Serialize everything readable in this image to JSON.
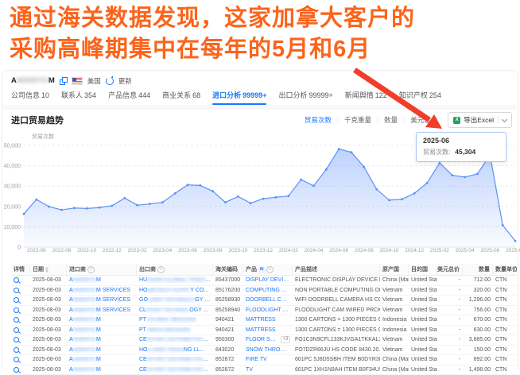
{
  "headline": {
    "line1": "通过海关数据发现，这家加拿大客户的",
    "line2": "采购高峰期集中在每年的5月和6月"
  },
  "colors": {
    "headline": "#fb641b",
    "arrow": "#f23d2a",
    "accent_blue": "#1677ff",
    "chart_line": "#5b8ff9",
    "chart_area": "#d6e4fb",
    "excel_green": "#1ea35a"
  },
  "company_bar": {
    "name_start": "A",
    "name_mask": "NDERTO",
    "name_end": "M",
    "country": "美国",
    "refresh_label": "更新"
  },
  "tabs": [
    {
      "label": "公司信息",
      "count": "10",
      "active": false
    },
    {
      "label": "联系人",
      "count": "354",
      "active": false
    },
    {
      "label": "产品信息",
      "count": "444",
      "active": false
    },
    {
      "label": "商业关系",
      "count": "68",
      "active": false
    },
    {
      "label": "进口分析",
      "count": "99999+",
      "active": true
    },
    {
      "label": "出口分析",
      "count": "99999+",
      "active": false
    },
    {
      "label": "新闻舆情",
      "count": "122",
      "active": false
    },
    {
      "label": "知识产权",
      "count": "254",
      "active": false
    }
  ],
  "chart_section": {
    "title": "进口贸易趋势",
    "metrics": [
      {
        "label": "贸易次数",
        "active": true
      },
      {
        "label": "千克重量",
        "active": false
      },
      {
        "label": "数量",
        "active": false
      },
      {
        "label": "美元总价",
        "active": false
      }
    ],
    "export_label": "导出Excel"
  },
  "tooltip": {
    "date": "2025-06",
    "metric_label": "贸易次数:",
    "value": "45,304"
  },
  "chart_data": {
    "type": "area",
    "title": "进口贸易趋势",
    "ylabel": "贸易次数",
    "ylim": [
      0,
      50000
    ],
    "yticks": [
      0,
      10000,
      20000,
      30000,
      40000,
      50000
    ],
    "ytick_labels": [
      "0",
      "10,000",
      "20,000",
      "30,000",
      "40,000",
      "50,000"
    ],
    "grid": "horizontal-dashed",
    "legend": "none",
    "x": [
      "2022-05",
      "2022-06",
      "2022-07",
      "2022-08",
      "2022-09",
      "2022-10",
      "2022-11",
      "2022-12",
      "2023-01",
      "2023-02",
      "2023-03",
      "2023-04",
      "2023-05",
      "2023-06",
      "2023-07",
      "2023-08",
      "2023-09",
      "2023-10",
      "2023-11",
      "2023-12",
      "2024-01",
      "2024-02",
      "2024-03",
      "2024-04",
      "2024-05",
      "2024-06",
      "2024-07",
      "2024-08",
      "2024-09",
      "2024-10",
      "2024-11",
      "2024-12",
      "2025-01",
      "2025-02",
      "2025-03",
      "2025-04",
      "2025-05",
      "2025-06",
      "2025-07",
      "2025-08"
    ],
    "values": [
      16300,
      23400,
      19900,
      18300,
      19200,
      19000,
      19400,
      20300,
      24100,
      20600,
      21200,
      22000,
      26400,
      30600,
      30300,
      27450,
      22000,
      24900,
      21600,
      23800,
      24500,
      25100,
      33200,
      30100,
      38200,
      48200,
      46600,
      39400,
      28400,
      23100,
      23500,
      26400,
      31500,
      41400,
      35300,
      34400,
      36000,
      45304,
      10800,
      3000
    ],
    "xticks": [
      "2022-06",
      "2022-08",
      "2022-10",
      "2022-12",
      "2023-02",
      "2023-04",
      "2023-06",
      "2023-08",
      "2023-10",
      "2023-12",
      "2024-02",
      "2024-04",
      "2024-06",
      "2024-08",
      "2024-10",
      "2024-12",
      "2025-02",
      "2025-04",
      "2025-06",
      "2025-08"
    ],
    "highlight": {
      "x": "2025-06",
      "value": 45304
    }
  },
  "table": {
    "headers": [
      {
        "label": "详情",
        "icon": ""
      },
      {
        "label": "日期",
        "icon": "sort"
      },
      {
        "label": "进口商",
        "icon": "info"
      },
      {
        "label": "出口商",
        "icon": "info"
      },
      {
        "label": "海关编码",
        "icon": ""
      },
      {
        "label": "产品",
        "icon": "ai-info"
      },
      {
        "label": "产品描述",
        "icon": ""
      },
      {
        "label": "原产国",
        "icon": ""
      },
      {
        "label": "目的国",
        "icon": ""
      },
      {
        "label": "美元总价",
        "icon": ""
      },
      {
        "label": "数量",
        "icon": ""
      },
      {
        "label": "数量单位",
        "icon": ""
      }
    ],
    "rows": [
      {
        "date": "2025-08-03",
        "importer": {
          "start": "A",
          "mask": "NDERTO",
          "end": "M"
        },
        "exporter": {
          "start": "HU",
          "mask": "DSON GLOBAL TRADI",
          "end": "NG LI..."
        },
        "hs": "85437000",
        "product": "DISPLAY DEVICE",
        "badge": "",
        "desc": "ELECTRONIC DISPLAY DEVICE HTS CODE 85",
        "origin": "China (Mainland)",
        "dest": "United States",
        "usd": "-",
        "qty": "712.00",
        "unit": "CTN"
      },
      {
        "date": "2025-08-03",
        "importer": {
          "start": "A",
          "mask": "NDERTO",
          "end": "M SERVICES"
        },
        "exporter": {
          "start": "HO",
          "mask": "METECH SUPPL",
          "end": "Y CO..."
        },
        "hs": "85176200",
        "product": "COMPUTING DEVICE",
        "badge": "",
        "desc": "NON PORTABLE COMPUTING DEVICE HS CO",
        "origin": "Vietnam",
        "dest": "United States",
        "usd": "-",
        "qty": "320.00",
        "unit": "CTN"
      },
      {
        "date": "2025-08-03",
        "importer": {
          "start": "A",
          "mask": "NDERTO",
          "end": "M SERVICES"
        },
        "exporter": {
          "start": "GO",
          "mask": "LDEN TECHNOLO",
          "end": "GY V..."
        },
        "hs": "85258930",
        "product": "DOORBELL CAMERA",
        "badge": "",
        "desc": "WIFI DOORBELL CAMERA HS CODE 852589",
        "origin": "Vietnam",
        "dest": "United States",
        "usd": "-",
        "qty": "1,296.00",
        "unit": "CTN"
      },
      {
        "date": "2025-08-03",
        "importer": {
          "start": "A",
          "mask": "NDERTO",
          "end": "M SERVICES"
        },
        "exporter": {
          "start": "CL",
          "mask": "EVER TECHNOL",
          "end": "OGY ..."
        },
        "hs": "85258940",
        "product": "FLOODLIGHT CAM",
        "badge": "",
        "desc": "FLOODLIGHT CAM WIRED PRCKNIGHT US B",
        "origin": "Vietnam",
        "dest": "United States",
        "usd": "-",
        "qty": "756.00",
        "unit": "CTN"
      },
      {
        "date": "2025-08-03",
        "importer": {
          "start": "A",
          "mask": "NDERTO",
          "end": "M"
        },
        "exporter": {
          "start": "PT ",
          "mask": "GLOBAL BEDDING",
          "end": ""
        },
        "hs": "940421",
        "product": "MATTRESS",
        "badge": "",
        "desc": "1300 CARTONS = 1300 PIECES OF MATTRES",
        "origin": "Indonesia",
        "dest": "United States",
        "usd": "-",
        "qty": "670.00",
        "unit": "CTN"
      },
      {
        "date": "2025-08-03",
        "importer": {
          "start": "A",
          "mask": "NDERTO",
          "end": "M"
        },
        "exporter": {
          "start": "PT ",
          "mask": "MEGA BEDDING",
          "end": ""
        },
        "hs": "940421",
        "product": "MATTRESS",
        "badge": "",
        "desc": "1300 CARTONS = 1300 PIECES OF MATTRES",
        "origin": "Indonesia",
        "dest": "United States",
        "usd": "-",
        "qty": "630.00",
        "unit": "CTN"
      },
      {
        "date": "2025-08-03",
        "importer": {
          "start": "A",
          "mask": "NDERTO",
          "end": "M"
        },
        "exporter": {
          "start": "CE",
          "mask": "NTURY DISTRIBUTION SYS",
          "end": "TEMS..."
        },
        "hs": "950300",
        "product": "FLOOR SEAT",
        "badge": "+3",
        "desc": "FO1C3N9CFL133KJVGA1TKKAL3G4YY75U6J",
        "origin": "Vietnam",
        "dest": "United States",
        "usd": "-",
        "qty": "3,885.00",
        "unit": "CTN"
      },
      {
        "date": "2025-08-03",
        "importer": {
          "start": "A",
          "mask": "NDERTO",
          "end": "M"
        },
        "exporter": {
          "start": "HO",
          "mask": "LLAND TRADI",
          "end": "NG LL..."
        },
        "hs": "843020",
        "product": "SNOW THROWER",
        "badge": "",
        "desc": "FO7DZR66JU HS CODE 8430.20.0075 BRUSH",
        "origin": "Vietnam",
        "dest": "United States",
        "usd": "-",
        "qty": "150.00",
        "unit": "CTN"
      },
      {
        "date": "2025-08-03",
        "importer": {
          "start": "A",
          "mask": "NDERTO",
          "end": "M"
        },
        "exporter": {
          "start": "CE",
          "mask": "NTURY DISTRIBUTION SYS",
          "end": "TEMS..."
        },
        "hs": "852872",
        "product": "FIRE TV",
        "badge": "",
        "desc": "601PC 5J8D5SBH ITEM B0DYR3D7Q2H3 EN",
        "origin": "China (Mainland)",
        "dest": "United States",
        "usd": "-",
        "qty": "892.00",
        "unit": "CTN"
      },
      {
        "date": "2025-08-03",
        "importer": {
          "start": "A",
          "mask": "NDERTO",
          "end": "M"
        },
        "exporter": {
          "start": "CE",
          "mask": "NTURY DISTRIBUTION SYS",
          "end": "TEMS..."
        },
        "hs": "852872",
        "product": "TV",
        "badge": "",
        "desc": "601PC 1XH1N9AH ITEM B0F34U9MZBHSENS",
        "origin": "China (Mainland)",
        "dest": "United States",
        "usd": "-",
        "qty": "1,498.00",
        "unit": "CTN"
      }
    ]
  }
}
